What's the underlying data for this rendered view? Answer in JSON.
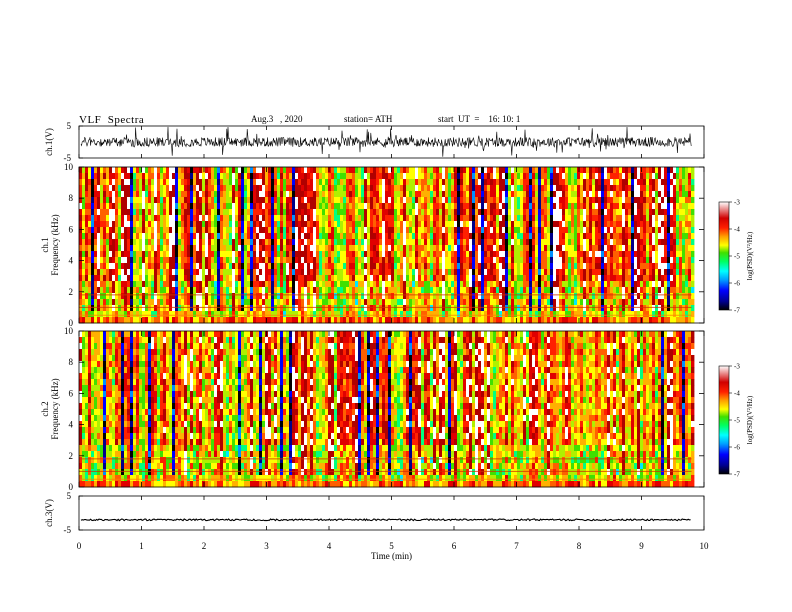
{
  "header": {
    "title": "VLF  Spectra",
    "date": "Aug.3   , 2020",
    "station": "station= ATH",
    "start_ut": "start  UT  =    16: 10: 1"
  },
  "colors": {
    "colormap": [
      "#000000",
      "#000080",
      "#0000ff",
      "#00a0ff",
      "#00ffff",
      "#00ff60",
      "#40e000",
      "#ffff00",
      "#ffa000",
      "#ff2000",
      "#d00000",
      "#ffffff"
    ]
  },
  "chart_data": [
    {
      "type": "line",
      "name": "ch1-waveform",
      "ylabel": "ch.1(V)",
      "ylim": [
        -5,
        5
      ],
      "y_ticks": [
        "5",
        "-5"
      ],
      "xlim": [
        0,
        10
      ],
      "description_values": "noisy waveform fluctuating roughly between -2 and 2 V with spikes toward ±5 V over 0–9.8 min"
    },
    {
      "type": "heatmap",
      "name": "ch1-spectrogram",
      "ylabel_top": "ch.1",
      "ylabel": "Frequency  (kHz)",
      "ylim": [
        0,
        10
      ],
      "y_ticks": [
        "0",
        "2",
        "4",
        "6",
        "8",
        "10"
      ],
      "xlim": [
        0,
        10
      ],
      "data_xmax": 9.8,
      "colorbar": {
        "label": "log(PSD)(V²/Hz)",
        "range": [
          -7,
          -3
        ],
        "ticks": [
          "-3",
          "-4",
          "-5",
          "-6",
          "-7"
        ]
      }
    },
    {
      "type": "heatmap",
      "name": "ch2-spectrogram",
      "ylabel_top": "ch.2",
      "ylabel": "Frequency  (kHz)",
      "ylim": [
        0,
        10
      ],
      "y_ticks": [
        "0",
        "2",
        "4",
        "6",
        "8",
        "10"
      ],
      "xlim": [
        0,
        10
      ],
      "data_xmax": 9.8,
      "colorbar": {
        "label": "log(PSD)(V²/Hz)",
        "range": [
          -7,
          -3
        ],
        "ticks": [
          "-3",
          "-4",
          "-5",
          "-6",
          "-7"
        ]
      }
    },
    {
      "type": "line",
      "name": "ch3-waveform",
      "ylabel": "ch.3(V)",
      "ylim": [
        -5,
        5
      ],
      "y_ticks": [
        "5",
        "-5"
      ],
      "xlim": [
        0,
        10
      ],
      "xlabel": "Time  (min)",
      "x_ticks": [
        "0",
        "1",
        "2",
        "3",
        "4",
        "5",
        "6",
        "7",
        "8",
        "9",
        "10"
      ],
      "description_values": "nearly flat trace at about -2 V over 0–9.8 min"
    }
  ]
}
